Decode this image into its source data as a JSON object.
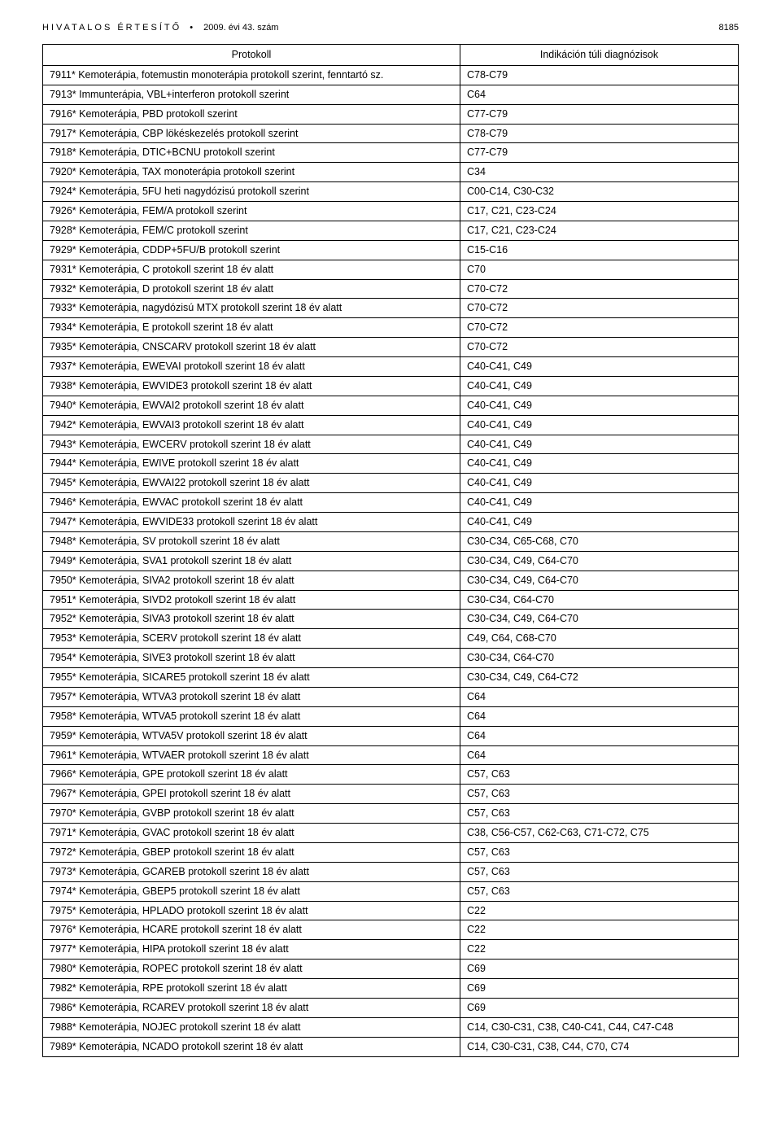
{
  "header": {
    "left": "HIVATALOS ÉRTESÍTŐ",
    "issue": "2009. évi 43. szám",
    "page_no": "8185"
  },
  "table": {
    "columns": [
      "Protokoll",
      "Indikáción túli diagnózisok"
    ],
    "rows": [
      [
        "7911* Kemoterápia, fotemustin monoterápia protokoll szerint, fenntartó sz.",
        "C78-C79"
      ],
      [
        "7913* Immunterápia, VBL+interferon protokoll szerint",
        "C64"
      ],
      [
        "7916* Kemoterápia, PBD protokoll szerint",
        "C77-C79"
      ],
      [
        "7917* Kemoterápia, CBP lökéskezelés protokoll szerint",
        "C78-C79"
      ],
      [
        "7918* Kemoterápia, DTIC+BCNU protokoll szerint",
        "C77-C79"
      ],
      [
        "7920* Kemoterápia, TAX monoterápia protokoll szerint",
        "C34"
      ],
      [
        "7924* Kemoterápia, 5FU heti nagydózisú protokoll szerint",
        "C00-C14, C30-C32"
      ],
      [
        "7926* Kemoterápia, FEM/A protokoll szerint",
        "C17, C21, C23-C24"
      ],
      [
        "7928* Kemoterápia, FEM/C protokoll szerint",
        "C17, C21, C23-C24"
      ],
      [
        "7929* Kemoterápia, CDDP+5FU/B protokoll szerint",
        "C15-C16"
      ],
      [
        "7931* Kemoterápia, C protokoll szerint 18 év alatt",
        "C70"
      ],
      [
        "7932* Kemoterápia, D protokoll szerint 18 év alatt",
        "C70-C72"
      ],
      [
        "7933* Kemoterápia, nagydózisú MTX protokoll szerint 18 év alatt",
        "C70-C72"
      ],
      [
        "7934* Kemoterápia, E protokoll szerint 18 év alatt",
        "C70-C72"
      ],
      [
        "7935* Kemoterápia, CNSCARV protokoll szerint 18 év alatt",
        "C70-C72"
      ],
      [
        "7937* Kemoterápia, EWEVAI protokoll szerint 18 év alatt",
        "C40-C41, C49"
      ],
      [
        "7938* Kemoterápia, EWVIDE3 protokoll szerint 18 év alatt",
        "C40-C41, C49"
      ],
      [
        "7940* Kemoterápia, EWVAI2 protokoll szerint 18 év alatt",
        "C40-C41, C49"
      ],
      [
        "7942* Kemoterápia, EWVAI3 protokoll szerint 18 év alatt",
        "C40-C41, C49"
      ],
      [
        "7943* Kemoterápia, EWCERV protokoll szerint 18 év alatt",
        "C40-C41, C49"
      ],
      [
        "7944* Kemoterápia, EWIVE protokoll szerint 18 év alatt",
        "C40-C41, C49"
      ],
      [
        "7945* Kemoterápia, EWVAI22 protokoll szerint 18 év alatt",
        "C40-C41, C49"
      ],
      [
        "7946* Kemoterápia, EWVAC protokoll szerint 18 év alatt",
        "C40-C41, C49"
      ],
      [
        "7947* Kemoterápia, EWVIDE33 protokoll szerint 18 év alatt",
        "C40-C41, C49"
      ],
      [
        "7948* Kemoterápia, SV protokoll szerint 18 év alatt",
        "C30-C34, C65-C68, C70"
      ],
      [
        "7949* Kemoterápia, SVA1 protokoll szerint 18 év alatt",
        "C30-C34, C49, C64-C70"
      ],
      [
        "7950* Kemoterápia, SIVA2 protokoll szerint 18 év alatt",
        "C30-C34, C49, C64-C70"
      ],
      [
        "7951* Kemoterápia, SIVD2 protokoll szerint 18 év alatt",
        "C30-C34, C64-C70"
      ],
      [
        "7952* Kemoterápia, SIVA3 protokoll szerint 18 év alatt",
        "C30-C34, C49, C64-C70"
      ],
      [
        "7953* Kemoterápia, SCERV protokoll szerint 18 év alatt",
        "C49, C64, C68-C70"
      ],
      [
        "7954* Kemoterápia, SIVE3 protokoll szerint 18 év alatt",
        "C30-C34, C64-C70"
      ],
      [
        "7955* Kemoterápia, SICARE5 protokoll szerint 18 év alatt",
        "C30-C34, C49, C64-C72"
      ],
      [
        "7957* Kemoterápia, WTVA3 protokoll szerint 18 év alatt",
        "C64"
      ],
      [
        "7958* Kemoterápia, WTVA5 protokoll szerint 18 év alatt",
        "C64"
      ],
      [
        "7959* Kemoterápia, WTVA5V protokoll szerint 18 év alatt",
        "C64"
      ],
      [
        "7961* Kemoterápia, WTVAER protokoll szerint 18 év alatt",
        "C64"
      ],
      [
        "7966* Kemoterápia, GPE protokoll szerint 18 év alatt",
        "C57, C63"
      ],
      [
        "7967* Kemoterápia, GPEI protokoll szerint 18 év alatt",
        "C57, C63"
      ],
      [
        "7970* Kemoterápia, GVBP protokoll szerint 18 év alatt",
        "C57, C63"
      ],
      [
        "7971* Kemoterápia, GVAC protokoll szerint 18 év alatt",
        "C38, C56-C57, C62-C63, C71-C72, C75"
      ],
      [
        "7972* Kemoterápia, GBEP protokoll szerint 18 év alatt",
        "C57, C63"
      ],
      [
        "7973* Kemoterápia, GCAREB protokoll szerint 18 év alatt",
        "C57, C63"
      ],
      [
        "7974* Kemoterápia, GBEP5 protokoll szerint 18 év alatt",
        "C57, C63"
      ],
      [
        "7975* Kemoterápia, HPLADO protokoll szerint 18 év alatt",
        "C22"
      ],
      [
        "7976* Kemoterápia, HCARE protokoll szerint 18 év alatt",
        "C22"
      ],
      [
        "7977* Kemoterápia, HIPA protokoll szerint 18 év alatt",
        "C22"
      ],
      [
        "7980* Kemoterápia, ROPEC protokoll szerint 18 év alatt",
        "C69"
      ],
      [
        "7982* Kemoterápia, RPE protokoll szerint 18 év alatt",
        "C69"
      ],
      [
        "7986* Kemoterápia, RCAREV protokoll szerint 18 év alatt",
        "C69"
      ],
      [
        "7988* Kemoterápia, NOJEC protokoll szerint 18 év alatt",
        "C14, C30-C31, C38, C40-C41, C44, C47-C48"
      ],
      [
        "7989* Kemoterápia, NCADO protokoll szerint 18 év alatt",
        "C14, C30-C31, C38, C44, C70, C74"
      ]
    ]
  }
}
